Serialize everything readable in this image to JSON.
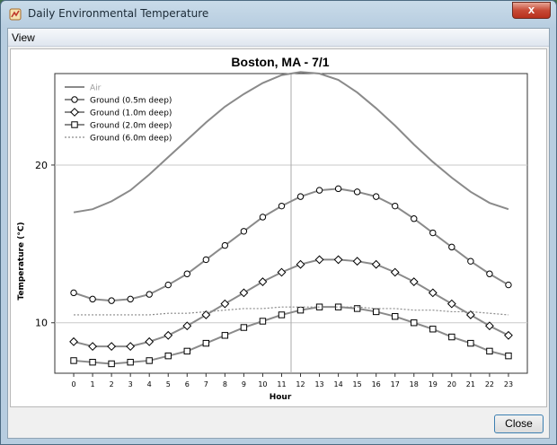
{
  "window": {
    "title": "Daily Environmental Temperature",
    "close_glyph": "x",
    "app_icon": "thermometer-chart-icon"
  },
  "menubar": {
    "items": [
      {
        "label": "View"
      }
    ]
  },
  "footer": {
    "close_label": "Close"
  },
  "colors": {
    "air": "#888888",
    "ground": "#888888",
    "deep": "#888888",
    "crosshair": "#aaaaaa"
  },
  "chart_data": {
    "type": "line",
    "title": "Boston, MA - 7/1",
    "xlabel": "Hour",
    "ylabel": "Temperature (°C)",
    "x": [
      0,
      1,
      2,
      3,
      4,
      5,
      6,
      7,
      8,
      9,
      10,
      11,
      12,
      13,
      14,
      15,
      16,
      17,
      18,
      19,
      20,
      21,
      22,
      23
    ],
    "xlim": [
      -1,
      24
    ],
    "ylim": [
      6.8,
      25.8
    ],
    "yticks": [
      10,
      20
    ],
    "grid": true,
    "crosshair": {
      "x": 11.5,
      "y": 20
    },
    "legend": "top-left",
    "series": [
      {
        "name": "Air",
        "marker": "none",
        "dash": "solid",
        "values": [
          17.0,
          17.2,
          17.7,
          18.4,
          19.4,
          20.5,
          21.6,
          22.7,
          23.7,
          24.5,
          25.2,
          25.7,
          25.9,
          25.8,
          25.4,
          24.6,
          23.6,
          22.5,
          21.3,
          20.2,
          19.2,
          18.3,
          17.6,
          17.2
        ]
      },
      {
        "name": "Ground (0.5m deep)",
        "marker": "circle",
        "dash": "solid",
        "values": [
          11.9,
          11.5,
          11.4,
          11.5,
          11.8,
          12.4,
          13.1,
          14.0,
          14.9,
          15.8,
          16.7,
          17.4,
          18.0,
          18.4,
          18.5,
          18.3,
          18.0,
          17.4,
          16.6,
          15.7,
          14.8,
          13.9,
          13.1,
          12.4
        ]
      },
      {
        "name": "Ground (1.0m deep)",
        "marker": "diamond",
        "dash": "solid",
        "values": [
          8.8,
          8.5,
          8.5,
          8.5,
          8.8,
          9.2,
          9.8,
          10.5,
          11.2,
          11.9,
          12.6,
          13.2,
          13.7,
          14.0,
          14.0,
          13.9,
          13.7,
          13.2,
          12.6,
          11.9,
          11.2,
          10.5,
          9.8,
          9.2
        ]
      },
      {
        "name": "Ground (2.0m deep)",
        "marker": "square",
        "dash": "solid",
        "values": [
          7.6,
          7.5,
          7.4,
          7.5,
          7.6,
          7.9,
          8.2,
          8.7,
          9.2,
          9.7,
          10.1,
          10.5,
          10.8,
          11.0,
          11.0,
          10.9,
          10.7,
          10.4,
          10.0,
          9.6,
          9.1,
          8.7,
          8.2,
          7.9
        ]
      },
      {
        "name": "Ground (6.0m deep)",
        "marker": "none",
        "dash": "dotted",
        "values": [
          10.5,
          10.5,
          10.5,
          10.5,
          10.5,
          10.6,
          10.6,
          10.7,
          10.8,
          10.9,
          10.9,
          11.0,
          11.0,
          11.0,
          11.0,
          11.0,
          10.9,
          10.9,
          10.8,
          10.8,
          10.7,
          10.7,
          10.6,
          10.5
        ]
      }
    ]
  }
}
